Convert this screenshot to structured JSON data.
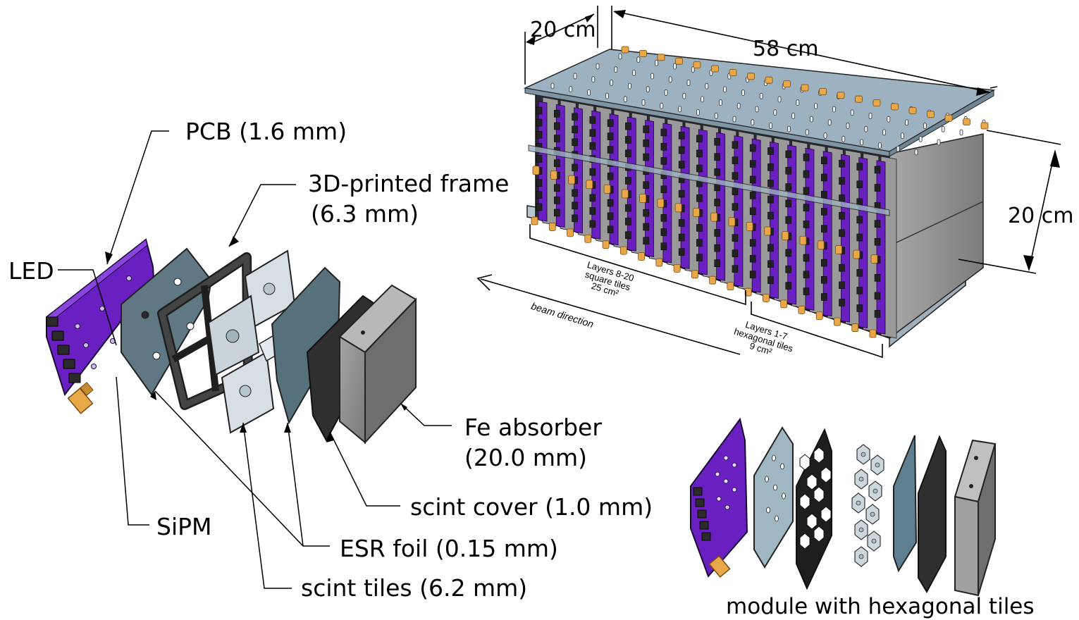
{
  "labels": {
    "pcb": "PCB (1.6 mm)",
    "frame_line1": "3D-printed frame",
    "frame_line2": "(6.3 mm)",
    "led": "LED",
    "fe_line1": "Fe absorber",
    "fe_line2": "(20.0 mm)",
    "scint_cover": "scint cover (1.0 mm)",
    "sipm": "SiPM",
    "esr": "ESR foil (0.15 mm)",
    "scint_tiles": "scint tiles (6.2 mm)"
  },
  "dimensions": {
    "depth": "20 cm",
    "length": "58 cm",
    "height": "20 cm"
  },
  "stack": {
    "group_8_20": [
      "Layers 8-20",
      "square tiles",
      "25 cm²"
    ],
    "group_1_7": [
      "Layers 1-7",
      "hexagonal tiles",
      "9 cm²"
    ],
    "beam": "beam direction"
  },
  "caption": "module with hexagonal tiles",
  "colors": {
    "pcb": "#6a1fc0",
    "esr": "#5b7480",
    "frame": "#2b2b2b",
    "tile": "#d8e2e8",
    "cover": "#2f2f2f",
    "absorber": "#8d8d8d",
    "connector": "#e8a84a"
  }
}
